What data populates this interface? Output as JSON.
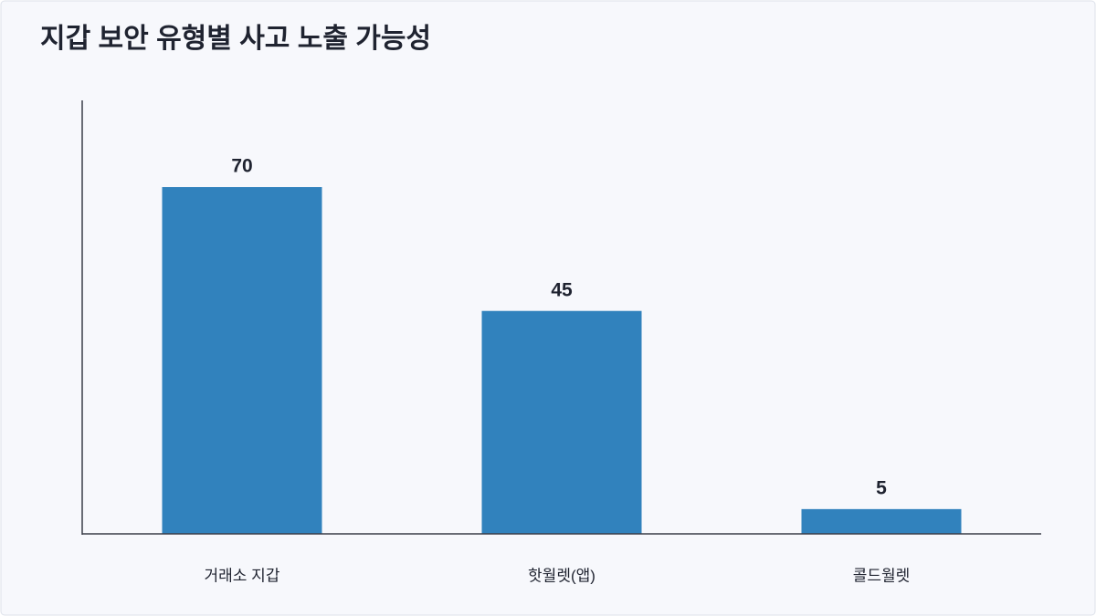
{
  "chart_data": {
    "type": "bar",
    "title": "지갑 보안 유형별 사고 노출 가능성",
    "categories": [
      "거래소 지갑",
      "핫월렛(앱)",
      "콜드월렛"
    ],
    "values": [
      70,
      45,
      5
    ],
    "color": "#3182bd",
    "ylim": [
      0,
      87.5
    ],
    "value_labels_shown": true
  }
}
